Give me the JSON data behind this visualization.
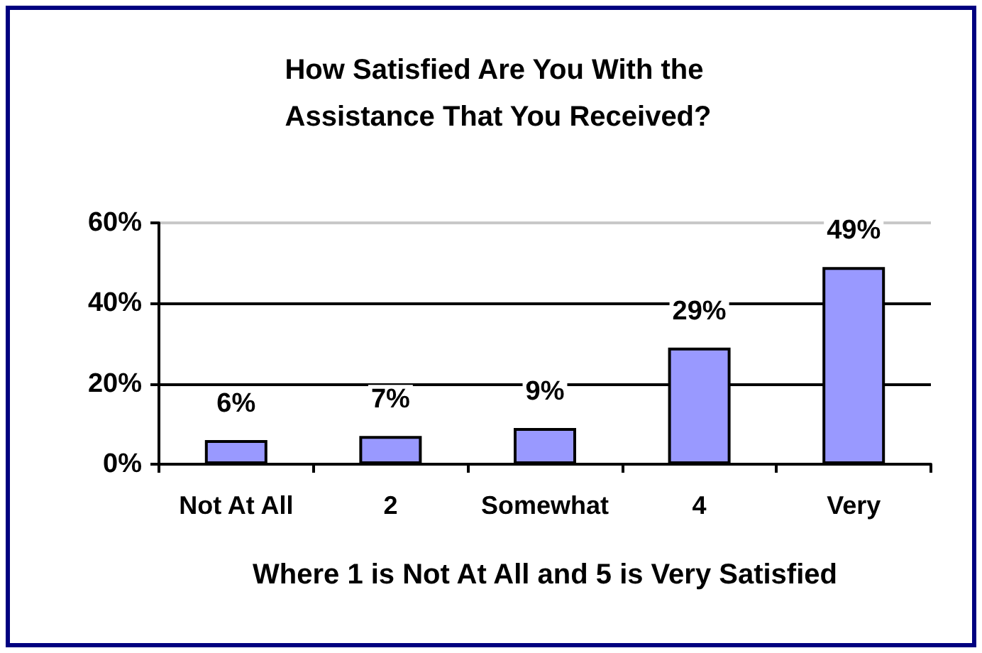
{
  "chart_data": {
    "type": "bar",
    "title": "How Satisfied Are You With the Assistance That You Received?",
    "xlabel": "Where 1 is Not At All and 5 is Very Satisfied",
    "categories": [
      "Not At All",
      "2",
      "Somewhat",
      "4",
      "Very"
    ],
    "values": [
      6,
      7,
      9,
      29,
      49
    ],
    "value_labels": [
      "6%",
      "7%",
      "9%",
      "29%",
      "49%"
    ],
    "color": "#9999ff",
    "ylim": [
      0,
      60
    ],
    "yticks": [
      {
        "value": 0,
        "label": "0%"
      },
      {
        "value": 20,
        "label": "20%"
      },
      {
        "value": 40,
        "label": "40%"
      },
      {
        "value": 60,
        "label": "60%"
      }
    ],
    "grid": "y"
  }
}
